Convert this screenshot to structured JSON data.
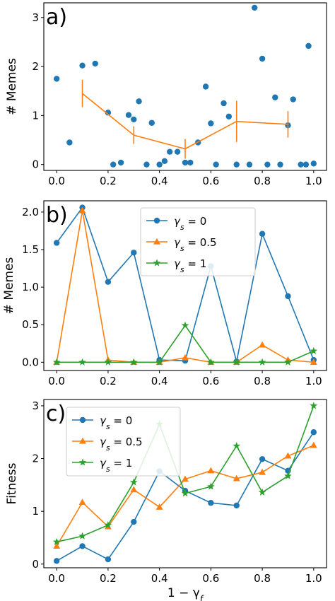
{
  "colors": {
    "gamma0": "#1f77b4",
    "gamma05": "#ff7f0e",
    "gamma1": "#2ca02c",
    "legend_border": "#cccccc"
  },
  "chart_data": [
    {
      "type": "scatter",
      "panel_label": "a)",
      "xlabel": "",
      "ylabel": "# Memes",
      "xlim": [
        -0.05,
        1.05
      ],
      "ylim": [
        -0.12,
        3.3
      ],
      "xticks": [
        "0.0",
        "0.2",
        "0.4",
        "0.6",
        "0.8",
        "1.0"
      ],
      "xtick_values": [
        0,
        0.2,
        0.4,
        0.6,
        0.8,
        1.0
      ],
      "yticks": [
        "0",
        "1",
        "2",
        "3"
      ],
      "ytick_values": [
        0,
        1,
        2,
        3
      ],
      "grid": false,
      "points": {
        "x": [
          0.0,
          0.05,
          0.1,
          0.15,
          0.2,
          0.22,
          0.25,
          0.28,
          0.3,
          0.32,
          0.35,
          0.37,
          0.4,
          0.42,
          0.44,
          0.47,
          0.5,
          0.52,
          0.55,
          0.58,
          0.6,
          0.62,
          0.65,
          0.67,
          0.7,
          0.75,
          0.77,
          0.8,
          0.82,
          0.85,
          0.87,
          0.9,
          0.92,
          0.95,
          0.97,
          0.98,
          1.0
        ],
        "y": [
          1.75,
          0.45,
          2.02,
          2.06,
          1.06,
          0.0,
          0.04,
          1.01,
          0.92,
          1.29,
          0.0,
          0.85,
          0.0,
          0.07,
          0.26,
          0.26,
          0.04,
          0.04,
          0.45,
          1.59,
          0.84,
          0.0,
          1.25,
          0.98,
          0.0,
          0.0,
          3.2,
          2.16,
          0.0,
          1.37,
          0.0,
          0.8,
          1.33,
          0.0,
          0.0,
          2.42,
          0.02
        ]
      },
      "binned_mean": {
        "x": [
          0.1,
          0.3,
          0.5,
          0.7,
          0.9
        ],
        "y": [
          1.45,
          0.6,
          0.32,
          0.88,
          0.82
        ],
        "err": [
          0.28,
          0.18,
          0.2,
          0.42,
          0.27
        ]
      }
    },
    {
      "type": "line",
      "panel_label": "b)",
      "xlabel": "",
      "ylabel": "# Memes",
      "xlim": [
        -0.05,
        1.05
      ],
      "ylim": [
        -0.11,
        2.15
      ],
      "xticks": [
        "0.0",
        "0.2",
        "0.4",
        "0.6",
        "0.8",
        "1.0"
      ],
      "xtick_values": [
        0,
        0.2,
        0.4,
        0.6,
        0.8,
        1.0
      ],
      "yticks": [
        "0.0",
        "0.5",
        "1.0",
        "1.5",
        "2.0"
      ],
      "ytick_values": [
        0,
        0.5,
        1.0,
        1.5,
        2.0
      ],
      "grid": false,
      "legend_position": "top-center",
      "x": [
        0.0,
        0.1,
        0.2,
        0.3,
        0.4,
        0.5,
        0.6,
        0.7,
        0.8,
        0.9,
        1.0
      ],
      "series": [
        {
          "name": "γs = 0",
          "label_main": "γ",
          "label_sub": "s",
          "label_rest": " = 0",
          "marker": "circle",
          "values": [
            1.59,
            2.06,
            1.07,
            1.46,
            0.03,
            0.02,
            1.28,
            0.01,
            1.71,
            0.88,
            0.03
          ]
        },
        {
          "name": "γs = 0.5",
          "label_main": "γ",
          "label_sub": "s",
          "label_rest": " = 0.5",
          "marker": "triangle",
          "values": [
            0.0,
            2.02,
            0.03,
            0.0,
            0.0,
            0.06,
            0.0,
            0.0,
            0.23,
            0.03,
            0.0
          ]
        },
        {
          "name": "γs = 1",
          "label_main": "γ",
          "label_sub": "s",
          "label_rest": " = 1",
          "marker": "star",
          "values": [
            0.0,
            0.0,
            0.0,
            0.0,
            0.0,
            0.49,
            0.0,
            0.0,
            0.0,
            0.0,
            0.15
          ]
        }
      ]
    },
    {
      "type": "line",
      "panel_label": "c)",
      "xlabel": "1 − γf",
      "xlabel_main": "1 − γ",
      "xlabel_sub": "f",
      "ylabel": "Fitness",
      "xlim": [
        -0.05,
        1.05
      ],
      "ylim": [
        -0.07,
        3.12
      ],
      "xticks": [
        "0.0",
        "0.2",
        "0.4",
        "0.6",
        "0.8",
        "1.0"
      ],
      "xtick_values": [
        0,
        0.2,
        0.4,
        0.6,
        0.8,
        1.0
      ],
      "yticks": [
        "0",
        "1",
        "2",
        "3"
      ],
      "ytick_values": [
        0,
        1,
        2,
        3
      ],
      "grid": false,
      "legend_position": "top-left",
      "x": [
        0.0,
        0.1,
        0.2,
        0.3,
        0.4,
        0.5,
        0.6,
        0.7,
        0.8,
        0.9,
        1.0
      ],
      "series": [
        {
          "name": "γs = 0",
          "label_main": "γ",
          "label_sub": "s",
          "label_rest": " = 0",
          "marker": "circle",
          "values": [
            0.06,
            0.34,
            0.09,
            0.8,
            1.76,
            1.39,
            1.16,
            1.11,
            1.99,
            1.77,
            2.5
          ]
        },
        {
          "name": "γs = 0.5",
          "label_main": "γ",
          "label_sub": "s",
          "label_rest": " = 0.5",
          "marker": "triangle",
          "values": [
            0.34,
            1.17,
            0.71,
            1.41,
            1.08,
            1.61,
            1.77,
            1.62,
            1.74,
            2.05,
            2.25
          ]
        },
        {
          "name": "γs = 1",
          "label_main": "γ",
          "label_sub": "s",
          "label_rest": " = 1",
          "marker": "star",
          "values": [
            0.42,
            0.53,
            0.74,
            1.55,
            2.65,
            1.34,
            1.47,
            2.24,
            1.36,
            1.67,
            3.0
          ]
        }
      ]
    }
  ]
}
